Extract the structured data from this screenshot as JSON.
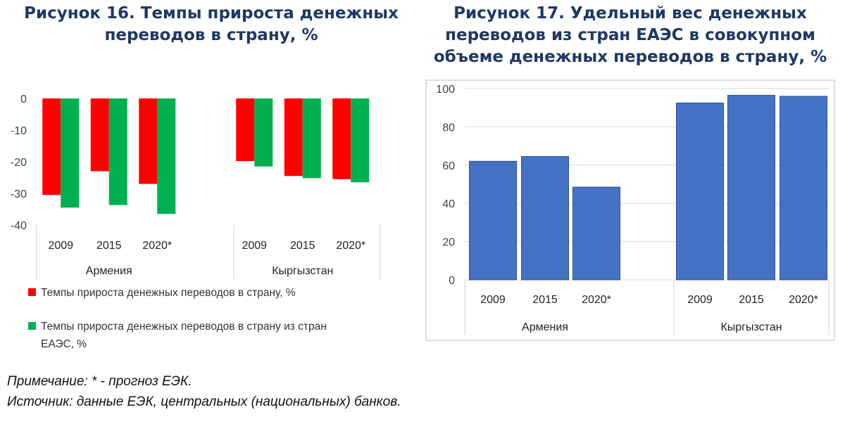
{
  "figure16": {
    "title": "Рисунок 16. Темпы прироста денежных переводов в страну, %"
  },
  "figure17": {
    "title": "Рисунок 17. Удельный вес денежных переводов из стран ЕАЭС в совокупном объеме денежных переводов в страну, %"
  },
  "notes": {
    "note": "Примечание: * - прогноз ЕЭК.",
    "source": "Источник: данные ЕЭК, центральных (национальных) банков."
  },
  "colors": {
    "red": "#ff0000",
    "green": "#00b050",
    "blue": "#4472c4",
    "grid": "#d9d9d9",
    "title": "#1f3864"
  },
  "chart_data": [
    {
      "type": "bar",
      "categories": [
        "2009",
        "2015",
        "2020*",
        "2009",
        "2015",
        "2020*"
      ],
      "groups": [
        "Армения",
        "Кыргызстан"
      ],
      "series": [
        {
          "name": "Темпы прироста денежных переводов в страну, %",
          "color": "#ff0000",
          "values": [
            -30.5,
            -23,
            -27,
            -19.8,
            -24.5,
            -25.5
          ]
        },
        {
          "name": "Темпы прироста денежных переводов в страну из стран ЕАЭС, %",
          "color": "#00b050",
          "values": [
            -34.5,
            -33.7,
            -36.5,
            -21.5,
            -25.2,
            -26.5
          ]
        }
      ],
      "ylim": [
        -40,
        0
      ],
      "yticks": [
        "0",
        "-10",
        "-20",
        "-30",
        "-40"
      ],
      "grid": false,
      "legend": "bottom"
    },
    {
      "type": "bar",
      "categories": [
        "2009",
        "2015",
        "2020*",
        "2009",
        "2015",
        "2020*"
      ],
      "groups": [
        "Армения",
        "Кыргызстан"
      ],
      "series": [
        {
          "name": "",
          "color": "#4472c4",
          "values": [
            62,
            64.5,
            48.5,
            92.5,
            96.5,
            96
          ]
        }
      ],
      "ylim": [
        0,
        100
      ],
      "yticks": [
        "0",
        "20",
        "40",
        "60",
        "80",
        "100"
      ],
      "grid": true
    }
  ]
}
